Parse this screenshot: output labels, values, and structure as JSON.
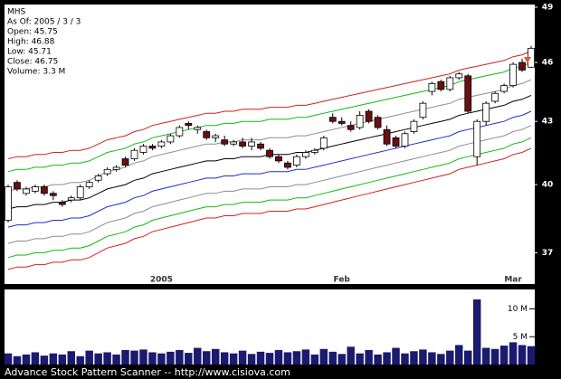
{
  "chart_data": [
    {
      "type": "candlestick",
      "info": {
        "symbol": "MHS",
        "as_of": "As Of: 2005 / 3 / 3",
        "open": "Open: 45.75",
        "high": "High: 46.88",
        "low": "Low: 45.71",
        "close": "Close: 46.75",
        "volume": "Volume: 3.3 M"
      },
      "categories": [
        null,
        null,
        null,
        null,
        null,
        null,
        null,
        null,
        null,
        null,
        null,
        null,
        null,
        null,
        null,
        null,
        null,
        "2005",
        null,
        null,
        null,
        null,
        null,
        null,
        null,
        null,
        null,
        null,
        null,
        null,
        null,
        null,
        null,
        null,
        null,
        null,
        null,
        "Feb",
        null,
        null,
        null,
        null,
        null,
        null,
        null,
        null,
        null,
        null,
        null,
        null,
        null,
        null,
        null,
        null,
        null,
        null,
        "Mar",
        null,
        null
      ],
      "open": [
        38.4,
        40.1,
        39.6,
        39.7,
        39.9,
        39.6,
        39.2,
        39.3,
        39.4,
        39.9,
        40.2,
        40.5,
        40.7,
        41.2,
        41.2,
        41.5,
        41.8,
        41.8,
        42.0,
        42.3,
        42.9,
        42.6,
        42.5,
        42.2,
        42.1,
        41.9,
        42.0,
        41.8,
        41.9,
        41.6,
        41.3,
        41.0,
        40.9,
        41.3,
        41.5,
        41.7,
        43.2,
        43.0,
        42.8,
        42.7,
        43.5,
        43.2,
        42.6,
        42.2,
        41.8,
        42.5,
        43.2,
        44.5,
        45.0,
        44.6,
        45.2,
        45.3,
        41.3,
        43.0,
        44.0,
        44.5,
        44.8,
        46.0,
        45.75
      ],
      "high": [
        40.0,
        40.2,
        39.9,
        40.0,
        40.0,
        39.7,
        39.3,
        39.5,
        40.0,
        40.2,
        40.5,
        40.8,
        40.9,
        41.3,
        41.7,
        41.9,
        41.9,
        42.1,
        42.4,
        42.8,
        43.0,
        42.8,
        42.6,
        42.4,
        42.3,
        42.1,
        42.2,
        42.2,
        42.0,
        41.7,
        41.4,
        41.1,
        41.4,
        41.6,
        41.7,
        42.3,
        43.4,
        43.2,
        43.0,
        43.5,
        43.6,
        43.3,
        42.8,
        42.3,
        42.5,
        43.1,
        44.0,
        45.0,
        45.1,
        45.3,
        45.5,
        45.4,
        43.1,
        44.0,
        44.5,
        44.9,
        46.0,
        46.2,
        46.88
      ],
      "low": [
        38.3,
        39.7,
        39.5,
        39.6,
        39.5,
        39.3,
        39.0,
        39.2,
        39.3,
        39.8,
        40.1,
        40.4,
        40.6,
        40.8,
        41.1,
        41.4,
        41.6,
        41.7,
        41.9,
        42.2,
        42.6,
        42.4,
        42.1,
        42.0,
        41.8,
        41.8,
        41.7,
        41.6,
        41.6,
        41.2,
        41.0,
        40.7,
        40.8,
        41.2,
        41.4,
        41.6,
        42.9,
        42.8,
        42.5,
        42.6,
        42.9,
        42.6,
        41.8,
        41.7,
        41.7,
        42.4,
        43.1,
        44.3,
        44.5,
        44.5,
        45.1,
        43.4,
        40.9,
        42.8,
        43.9,
        44.4,
        44.7,
        45.5,
        45.71
      ],
      "close": [
        39.9,
        39.8,
        39.8,
        39.9,
        39.6,
        39.5,
        39.1,
        39.4,
        39.9,
        40.1,
        40.4,
        40.7,
        40.8,
        40.9,
        41.6,
        41.8,
        41.7,
        42.0,
        42.3,
        42.7,
        42.8,
        42.7,
        42.2,
        42.3,
        41.9,
        42.0,
        41.8,
        42.0,
        41.7,
        41.3,
        41.1,
        40.8,
        41.3,
        41.5,
        41.6,
        42.2,
        43.0,
        42.9,
        42.6,
        43.3,
        43.0,
        42.7,
        41.9,
        41.8,
        42.4,
        43.0,
        43.9,
        44.9,
        44.6,
        45.2,
        45.4,
        43.5,
        43.0,
        43.9,
        44.4,
        44.8,
        45.9,
        45.6,
        46.75
      ],
      "up_color": "#ffffff",
      "down_color": "#6b1010",
      "bands": [
        {
          "color": "#d42020",
          "values": [
            41.2,
            41.3,
            41.3,
            41.4,
            41.4,
            41.5,
            41.5,
            41.6,
            41.6,
            41.7,
            41.9,
            42.1,
            42.2,
            42.3,
            42.5,
            42.6,
            42.8,
            42.9,
            43.0,
            43.1,
            43.2,
            43.3,
            43.4,
            43.4,
            43.5,
            43.5,
            43.6,
            43.6,
            43.6,
            43.7,
            43.7,
            43.7,
            43.8,
            43.8,
            43.9,
            44.0,
            44.1,
            44.2,
            44.3,
            44.4,
            44.5,
            44.6,
            44.7,
            44.8,
            44.9,
            45.0,
            45.1,
            45.2,
            45.3,
            45.4,
            45.6,
            45.7,
            45.8,
            45.9,
            46.0,
            46.1,
            46.3,
            46.4,
            46.6
          ]
        },
        {
          "color": "#14b814",
          "values": [
            40.6,
            40.7,
            40.7,
            40.8,
            40.8,
            40.9,
            40.9,
            41.0,
            41.0,
            41.1,
            41.3,
            41.5,
            41.6,
            41.7,
            41.9,
            42.0,
            42.2,
            42.3,
            42.4,
            42.5,
            42.6,
            42.7,
            42.8,
            42.8,
            42.9,
            42.9,
            43.0,
            43.0,
            43.0,
            43.1,
            43.1,
            43.1,
            43.2,
            43.2,
            43.3,
            43.4,
            43.5,
            43.6,
            43.7,
            43.8,
            43.9,
            44.0,
            44.1,
            44.2,
            44.3,
            44.4,
            44.5,
            44.6,
            44.7,
            44.8,
            45.0,
            45.1,
            45.2,
            45.3,
            45.4,
            45.5,
            45.7,
            45.8,
            46.0
          ]
        },
        {
          "color": "#8c8c8c",
          "values": [
            39.7,
            39.8,
            39.8,
            39.9,
            39.9,
            40.0,
            40.0,
            40.1,
            40.1,
            40.2,
            40.4,
            40.6,
            40.7,
            40.8,
            41.0,
            41.1,
            41.3,
            41.4,
            41.5,
            41.6,
            41.7,
            41.8,
            41.9,
            41.9,
            42.0,
            42.0,
            42.1,
            42.1,
            42.1,
            42.2,
            42.2,
            42.2,
            42.3,
            42.3,
            42.4,
            42.5,
            42.6,
            42.7,
            42.8,
            42.9,
            43.0,
            43.1,
            43.2,
            43.3,
            43.4,
            43.5,
            43.6,
            43.7,
            43.8,
            43.9,
            44.1,
            44.2,
            44.3,
            44.4,
            44.5,
            44.6,
            44.8,
            44.9,
            45.1
          ]
        },
        {
          "color": "#000000",
          "values": [
            38.9,
            39.0,
            39.0,
            39.1,
            39.1,
            39.2,
            39.2,
            39.3,
            39.3,
            39.4,
            39.6,
            39.8,
            39.9,
            40.0,
            40.2,
            40.3,
            40.5,
            40.6,
            40.7,
            40.8,
            40.9,
            41.0,
            41.1,
            41.1,
            41.2,
            41.2,
            41.3,
            41.3,
            41.3,
            41.4,
            41.4,
            41.4,
            41.5,
            41.5,
            41.6,
            41.7,
            41.8,
            41.9,
            42.0,
            42.1,
            42.2,
            42.3,
            42.4,
            42.5,
            42.6,
            42.7,
            42.8,
            42.9,
            43.0,
            43.1,
            43.3,
            43.4,
            43.5,
            43.6,
            43.7,
            43.8,
            44.0,
            44.1,
            44.3
          ]
        },
        {
          "color": "#1c2fc4",
          "values": [
            38.1,
            38.2,
            38.2,
            38.3,
            38.3,
            38.4,
            38.4,
            38.5,
            38.5,
            38.6,
            38.8,
            39.0,
            39.1,
            39.2,
            39.4,
            39.5,
            39.7,
            39.8,
            39.9,
            40.0,
            40.1,
            40.2,
            40.3,
            40.3,
            40.4,
            40.4,
            40.5,
            40.5,
            40.5,
            40.6,
            40.6,
            40.6,
            40.7,
            40.7,
            40.8,
            40.9,
            41.0,
            41.1,
            41.2,
            41.3,
            41.4,
            41.5,
            41.6,
            41.7,
            41.8,
            41.9,
            42.0,
            42.1,
            42.2,
            42.3,
            42.5,
            42.6,
            42.7,
            42.8,
            42.9,
            43.0,
            43.2,
            43.3,
            43.5
          ]
        },
        {
          "color": "#8c8c8c",
          "values": [
            37.4,
            37.5,
            37.5,
            37.6,
            37.6,
            37.7,
            37.7,
            37.8,
            37.8,
            37.9,
            38.1,
            38.3,
            38.4,
            38.5,
            38.7,
            38.8,
            39.0,
            39.1,
            39.2,
            39.3,
            39.4,
            39.5,
            39.6,
            39.6,
            39.7,
            39.7,
            39.8,
            39.8,
            39.8,
            39.9,
            39.9,
            39.9,
            40.0,
            40.0,
            40.1,
            40.2,
            40.3,
            40.4,
            40.5,
            40.6,
            40.7,
            40.8,
            40.9,
            41.0,
            41.1,
            41.2,
            41.3,
            41.4,
            41.5,
            41.6,
            41.8,
            41.9,
            42.0,
            42.1,
            42.2,
            42.3,
            42.5,
            42.6,
            42.8
          ]
        },
        {
          "color": "#14b814",
          "values": [
            36.8,
            36.9,
            36.9,
            37.0,
            37.0,
            37.1,
            37.1,
            37.2,
            37.2,
            37.3,
            37.5,
            37.7,
            37.8,
            37.9,
            38.1,
            38.2,
            38.4,
            38.5,
            38.6,
            38.7,
            38.8,
            38.9,
            39.0,
            39.0,
            39.1,
            39.1,
            39.2,
            39.2,
            39.2,
            39.3,
            39.3,
            39.3,
            39.4,
            39.4,
            39.5,
            39.6,
            39.7,
            39.8,
            39.9,
            40.0,
            40.1,
            40.2,
            40.3,
            40.4,
            40.5,
            40.6,
            40.7,
            40.8,
            40.9,
            41.0,
            41.2,
            41.3,
            41.4,
            41.5,
            41.6,
            41.7,
            41.9,
            42.0,
            42.2
          ]
        },
        {
          "color": "#d42020",
          "values": [
            36.3,
            36.4,
            36.4,
            36.5,
            36.5,
            36.6,
            36.6,
            36.7,
            36.7,
            36.8,
            37.0,
            37.2,
            37.3,
            37.4,
            37.6,
            37.7,
            37.9,
            38.0,
            38.1,
            38.2,
            38.3,
            38.4,
            38.5,
            38.5,
            38.6,
            38.6,
            38.7,
            38.7,
            38.7,
            38.8,
            38.8,
            38.8,
            38.9,
            38.9,
            39.0,
            39.1,
            39.2,
            39.3,
            39.4,
            39.5,
            39.6,
            39.7,
            39.8,
            39.9,
            40.0,
            40.1,
            40.2,
            40.3,
            40.4,
            40.5,
            40.7,
            40.8,
            40.9,
            41.0,
            41.1,
            41.2,
            41.4,
            41.5,
            41.7
          ]
        }
      ],
      "log_scale": true,
      "ylim": [
        35.7,
        49.15
      ],
      "yticks": [
        37,
        40,
        43,
        46,
        49
      ]
    },
    {
      "type": "bar",
      "values": [
        2.0,
        1.5,
        1.8,
        2.2,
        1.6,
        2.0,
        1.8,
        2.4,
        1.5,
        2.5,
        2.0,
        2.2,
        1.8,
        2.6,
        2.5,
        2.7,
        2.2,
        2.0,
        2.3,
        2.6,
        2.1,
        3.0,
        2.4,
        2.8,
        2.2,
        2.0,
        2.5,
        1.9,
        2.3,
        2.1,
        2.6,
        2.2,
        2.4,
        2.7,
        1.8,
        2.8,
        2.3,
        1.9,
        3.2,
        2.0,
        2.6,
        1.8,
        2.2,
        3.0,
        2.0,
        2.4,
        2.7,
        2.2,
        1.9,
        2.5,
        3.5,
        2.5,
        11.7,
        3.0,
        2.8,
        3.4,
        4.0,
        3.5,
        3.3
      ],
      "color": "#1a1a6e",
      "ylim": [
        0,
        13.5
      ],
      "yticks": [
        {
          "value": 5,
          "label": "5 M"
        },
        {
          "value": 10,
          "label": "10 M"
        }
      ]
    },
    {
      "footer": "Advance Stock Pattern Scanner -- http://www.cisiova.com"
    }
  ]
}
